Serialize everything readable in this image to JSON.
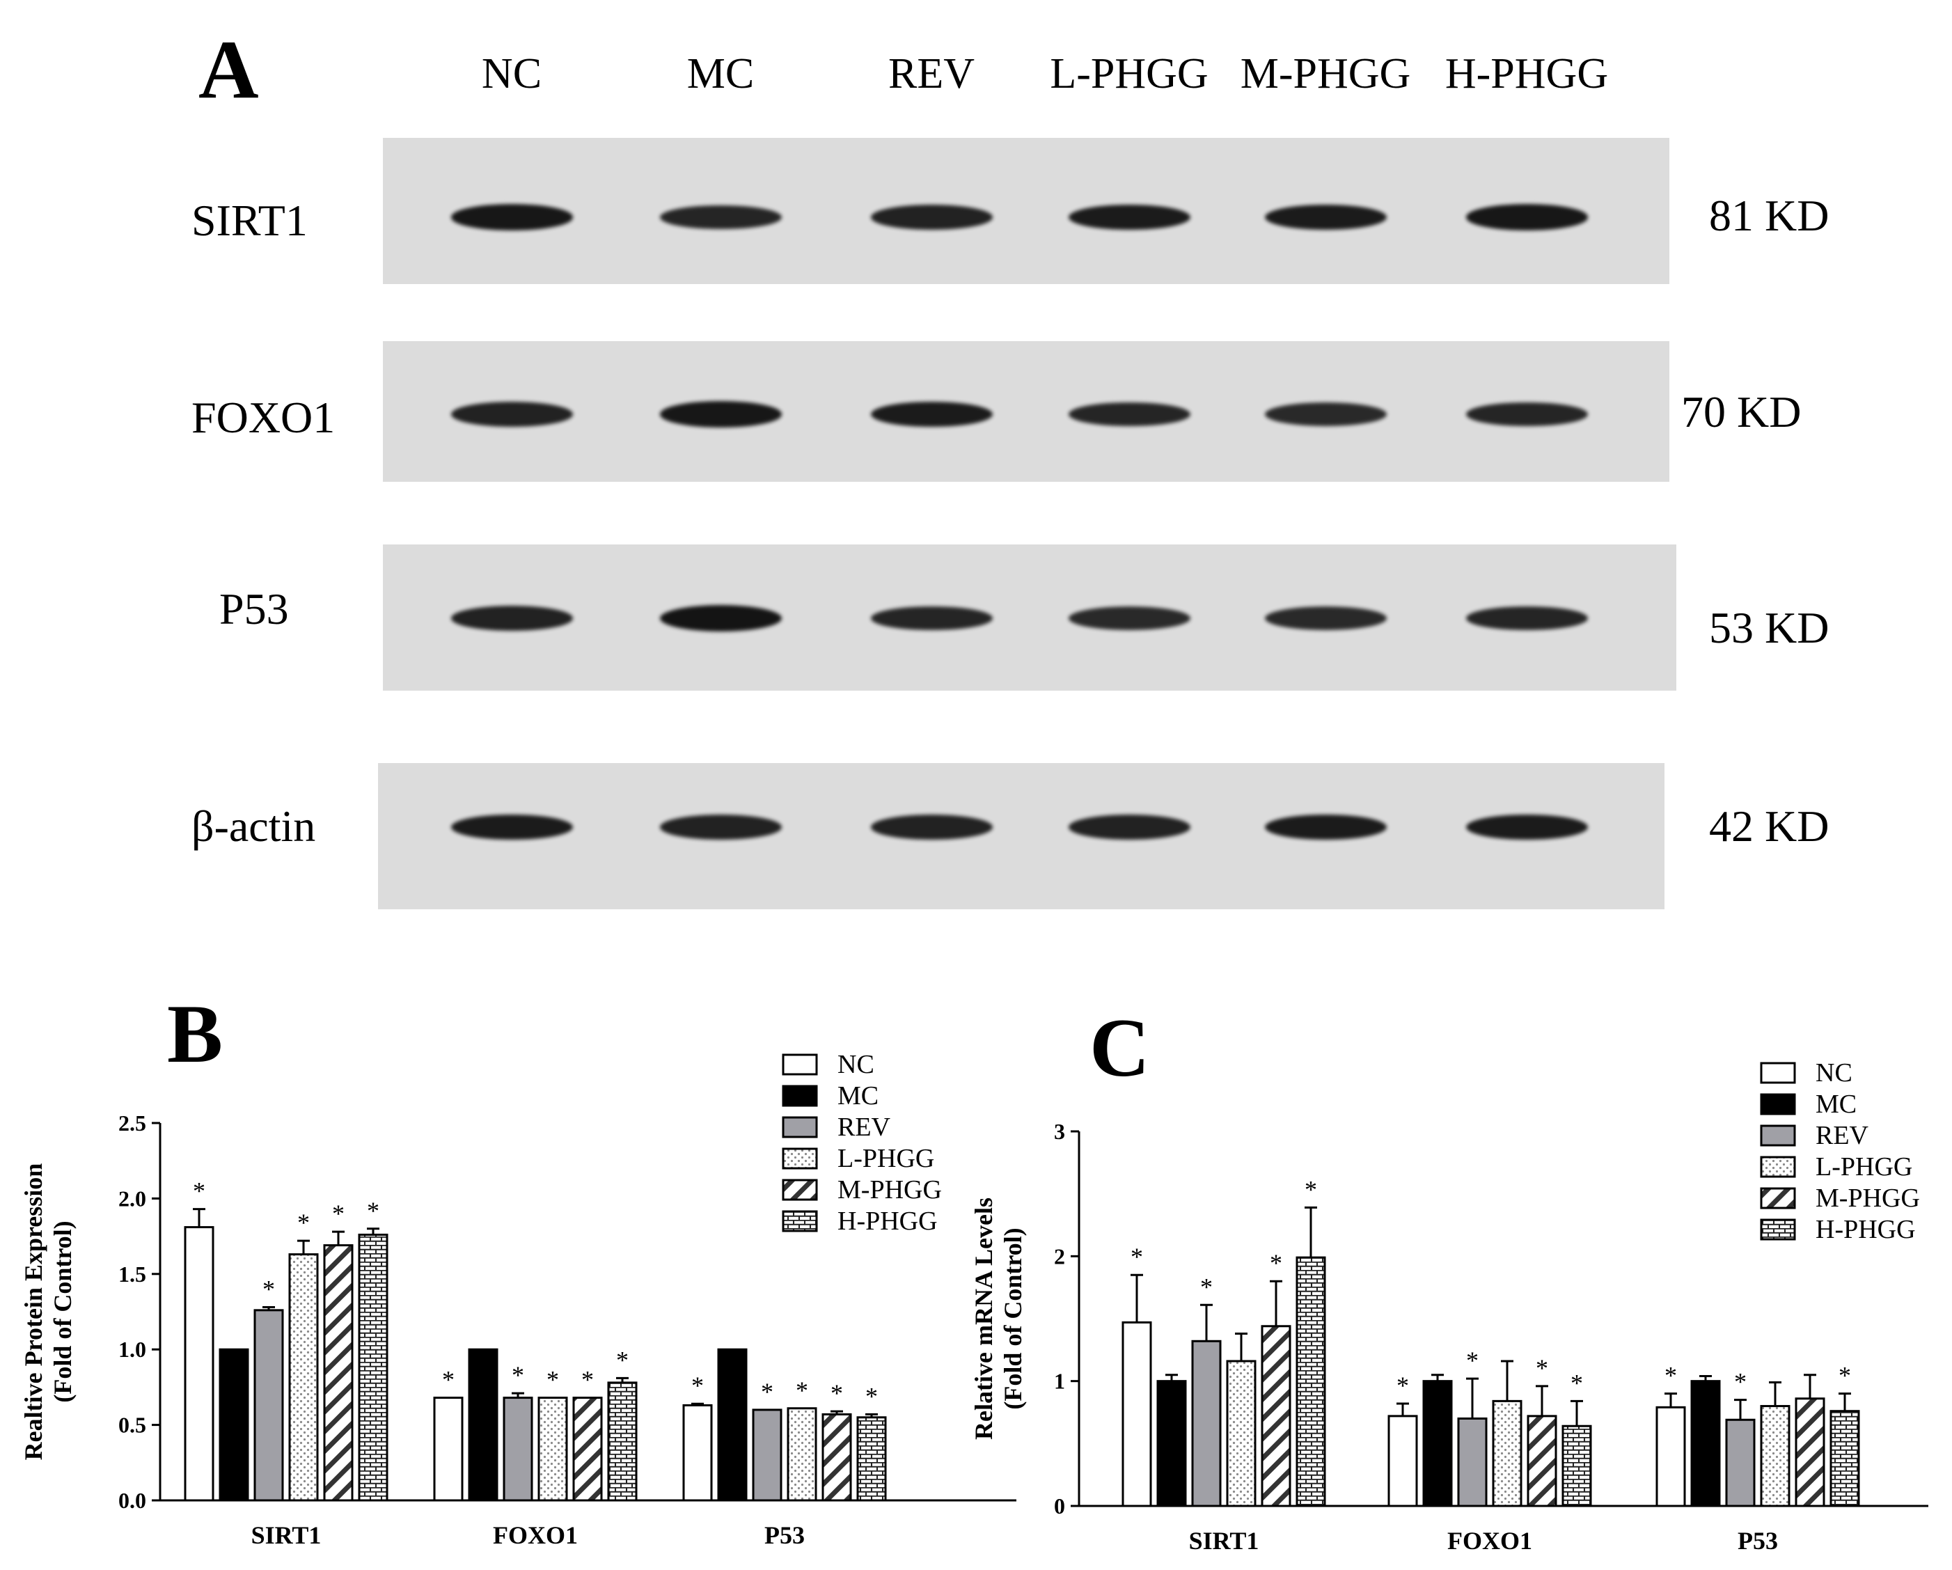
{
  "panel_a": {
    "letter": "A",
    "lanes": [
      "NC",
      "MC",
      "REV",
      "L-PHGG",
      "M-PHGG",
      "H-PHGG"
    ],
    "blots": [
      {
        "protein": "SIRT1",
        "size": "81 KD",
        "intensity": [
          0.95,
          0.8,
          0.85,
          0.9,
          0.9,
          0.95
        ]
      },
      {
        "protein": "FOXO1",
        "size": "70 KD",
        "intensity": [
          0.85,
          0.95,
          0.9,
          0.8,
          0.75,
          0.8
        ]
      },
      {
        "protein": "P53",
        "size": "53 KD",
        "intensity": [
          0.85,
          1.0,
          0.8,
          0.75,
          0.75,
          0.8
        ]
      },
      {
        "protein": "β-actin",
        "size": "42 KD",
        "intensity": [
          0.9,
          0.85,
          0.85,
          0.85,
          0.9,
          0.9
        ]
      }
    ]
  },
  "chart_data": [
    {
      "type": "bar",
      "panel": "B",
      "title": "",
      "ylabel": [
        "Realtive Protein Expression",
        "(Fold of Control)"
      ],
      "xlabel": "",
      "ylim": [
        0,
        2.5
      ],
      "yticks": [
        "0.0",
        "0.5",
        "1.0",
        "1.5",
        "2.0",
        "2.5"
      ],
      "categories": [
        "SIRT1",
        "FOXO1",
        "P53"
      ],
      "legend_position": "top-right",
      "series": [
        {
          "name": "NC",
          "values": [
            1.81,
            0.68,
            0.63
          ],
          "errors": [
            0.12,
            0.0,
            0.01
          ],
          "significant": [
            true,
            true,
            true
          ]
        },
        {
          "name": "MC",
          "values": [
            1.0,
            1.0,
            1.0
          ],
          "errors": [
            0.0,
            0.0,
            0.0
          ],
          "significant": [
            false,
            false,
            false
          ]
        },
        {
          "name": "REV",
          "values": [
            1.26,
            0.68,
            0.6
          ],
          "errors": [
            0.02,
            0.03,
            0.0
          ],
          "significant": [
            true,
            true,
            true
          ]
        },
        {
          "name": "L-PHGG",
          "values": [
            1.63,
            0.68,
            0.61
          ],
          "errors": [
            0.09,
            0.0,
            0.0
          ],
          "significant": [
            true,
            true,
            true
          ]
        },
        {
          "name": "M-PHGG",
          "values": [
            1.69,
            0.68,
            0.57
          ],
          "errors": [
            0.09,
            0.0,
            0.02
          ],
          "significant": [
            true,
            true,
            true
          ]
        },
        {
          "name": "H-PHGG",
          "values": [
            1.76,
            0.78,
            0.55
          ],
          "errors": [
            0.04,
            0.03,
            0.02
          ],
          "significant": [
            true,
            true,
            true
          ]
        }
      ]
    },
    {
      "type": "bar",
      "panel": "C",
      "title": "",
      "ylabel": [
        "Relative mRNA Levels",
        "(Fold of Control)"
      ],
      "xlabel": "",
      "ylim": [
        0,
        3
      ],
      "yticks": [
        "0",
        "1",
        "2",
        "3"
      ],
      "categories": [
        "SIRT1",
        "FOXO1",
        "P53"
      ],
      "legend_position": "top-right",
      "series": [
        {
          "name": "NC",
          "values": [
            1.47,
            0.72,
            0.79
          ],
          "errors": [
            0.38,
            0.1,
            0.11
          ],
          "significant": [
            true,
            true,
            true
          ]
        },
        {
          "name": "MC",
          "values": [
            1.0,
            1.0,
            1.0
          ],
          "errors": [
            0.05,
            0.05,
            0.04
          ],
          "significant": [
            false,
            false,
            false
          ]
        },
        {
          "name": "REV",
          "values": [
            1.32,
            0.7,
            0.69
          ],
          "errors": [
            0.29,
            0.32,
            0.16
          ],
          "significant": [
            true,
            true,
            true
          ]
        },
        {
          "name": "L-PHGG",
          "values": [
            1.16,
            0.84,
            0.8
          ],
          "errors": [
            0.22,
            0.32,
            0.19
          ],
          "significant": [
            false,
            false,
            false
          ]
        },
        {
          "name": "M-PHGG",
          "values": [
            1.44,
            0.72,
            0.86
          ],
          "errors": [
            0.36,
            0.24,
            0.19
          ],
          "significant": [
            true,
            true,
            false
          ]
        },
        {
          "name": "H-PHGG",
          "values": [
            1.99,
            0.64,
            0.76
          ],
          "errors": [
            0.4,
            0.2,
            0.14
          ],
          "significant": [
            true,
            true,
            true
          ]
        }
      ]
    }
  ]
}
